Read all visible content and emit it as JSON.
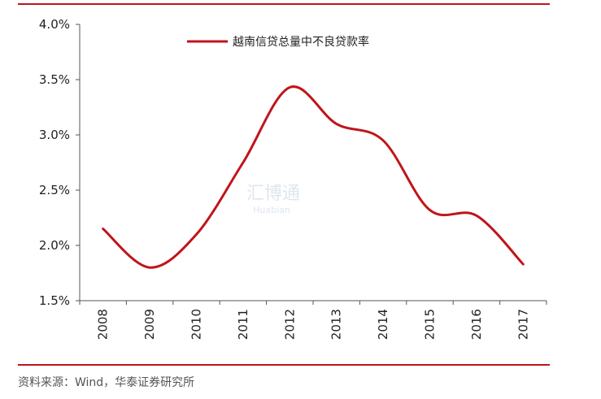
{
  "colors": {
    "line": "#c0141a",
    "rule": "#c0141a",
    "axis": "#555555",
    "text": "#222222"
  },
  "source": "资料来源：Wind，华泰证券研究所",
  "watermark": {
    "cn": "汇博通",
    "en": "Huabian"
  },
  "chart_data": {
    "type": "line",
    "categories": [
      "2008",
      "2009",
      "2010",
      "2011",
      "2012",
      "2013",
      "2014",
      "2015",
      "2016",
      "2017"
    ],
    "series": [
      {
        "name": "越南信贷总量中不良贷款率",
        "values": [
          2.15,
          1.8,
          2.1,
          2.75,
          3.43,
          3.1,
          2.95,
          2.32,
          2.27,
          1.83
        ]
      }
    ],
    "y_ticks": [
      "4.0%",
      "3.5%",
      "3.0%",
      "2.5%",
      "2.0%",
      "1.5%"
    ],
    "ylim": [
      1.5,
      4.0
    ],
    "grid": false,
    "legend_position": "top-center",
    "xlabel": "",
    "ylabel": ""
  }
}
